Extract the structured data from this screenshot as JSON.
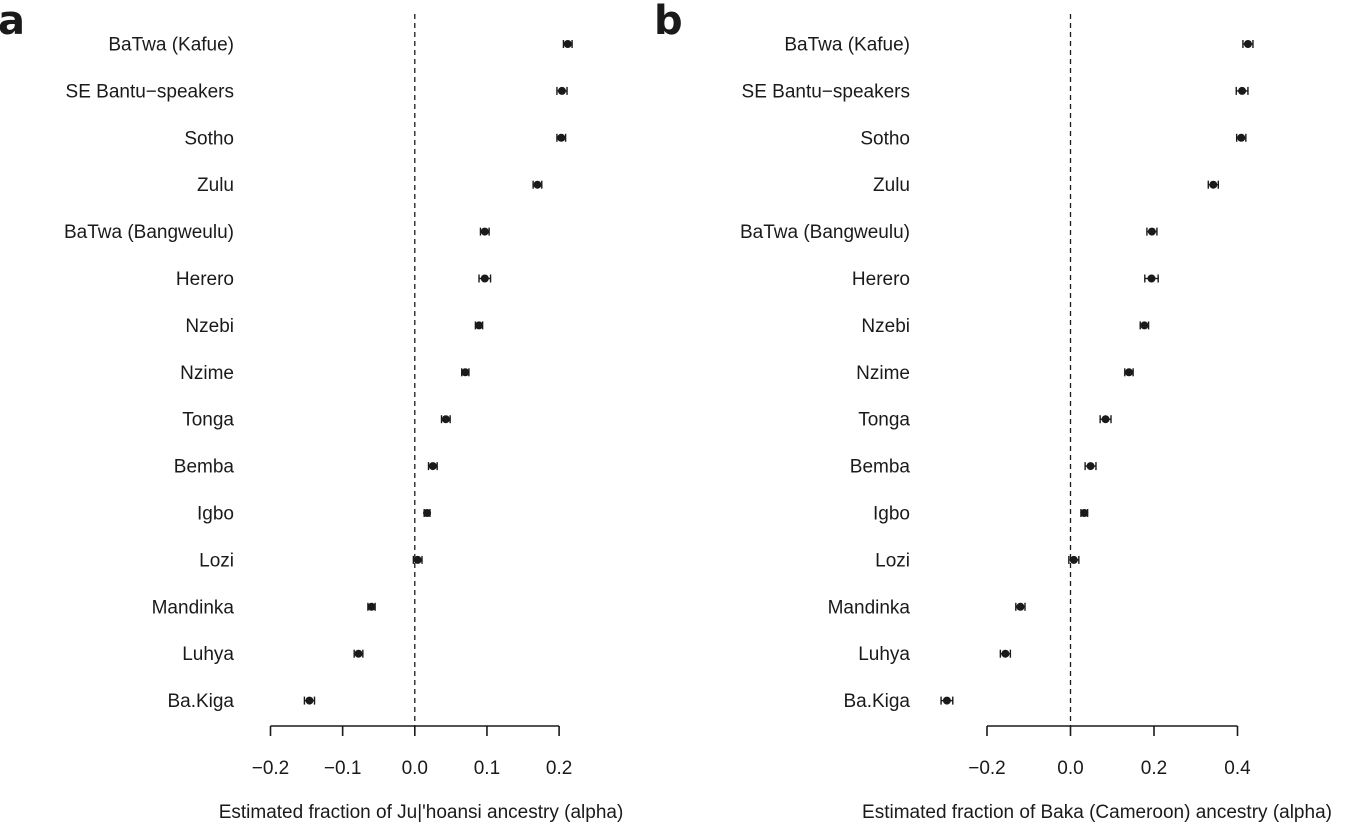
{
  "chart_data": [
    {
      "type": "scatter",
      "panel": "a",
      "xlabel": "Estimated fraction of Ju|'hoansi ancestry (alpha)",
      "xlim": [
        -0.2,
        0.2
      ],
      "xticks": [
        -0.2,
        -0.1,
        0.0,
        0.1,
        0.2
      ],
      "xtick_labels": [
        "−0.2",
        "−0.1",
        "0.0",
        "0.1",
        "0.2"
      ],
      "reference_line": 0.0,
      "points": [
        {
          "label": "BaTwa (Kafue)",
          "value": 0.212,
          "err": 0.006
        },
        {
          "label": "SE Bantu−speakers",
          "value": 0.204,
          "err": 0.007
        },
        {
          "label": "Sotho",
          "value": 0.203,
          "err": 0.006
        },
        {
          "label": "Zulu",
          "value": 0.17,
          "err": 0.006
        },
        {
          "label": "BaTwa (Bangweulu)",
          "value": 0.097,
          "err": 0.006
        },
        {
          "label": "Herero",
          "value": 0.097,
          "err": 0.008
        },
        {
          "label": "Nzebi",
          "value": 0.089,
          "err": 0.005
        },
        {
          "label": "Nzime",
          "value": 0.07,
          "err": 0.005
        },
        {
          "label": "Tonga",
          "value": 0.043,
          "err": 0.006
        },
        {
          "label": "Bemba",
          "value": 0.025,
          "err": 0.006
        },
        {
          "label": "Igbo",
          "value": 0.017,
          "err": 0.004
        },
        {
          "label": "Lozi",
          "value": 0.004,
          "err": 0.006
        },
        {
          "label": "Mandinka",
          "value": -0.06,
          "err": 0.005
        },
        {
          "label": "Luhya",
          "value": -0.078,
          "err": 0.006
        },
        {
          "label": "Ba.Kiga",
          "value": -0.146,
          "err": 0.007
        }
      ]
    },
    {
      "type": "scatter",
      "panel": "b",
      "xlabel": "Estimated fraction of Baka (Cameroon) ancestry (alpha)",
      "xlim": [
        -0.2,
        0.4
      ],
      "xticks": [
        -0.2,
        0.0,
        0.2,
        0.4
      ],
      "xtick_labels": [
        "−0.2",
        "0.0",
        "0.2",
        "0.4"
      ],
      "reference_line": 0.0,
      "points": [
        {
          "label": "BaTwa (Kafue)",
          "value": 0.425,
          "err": 0.012
        },
        {
          "label": "SE Bantu−speakers",
          "value": 0.411,
          "err": 0.014
        },
        {
          "label": "Sotho",
          "value": 0.409,
          "err": 0.011
        },
        {
          "label": "Zulu",
          "value": 0.342,
          "err": 0.012
        },
        {
          "label": "BaTwa (Bangweulu)",
          "value": 0.195,
          "err": 0.012
        },
        {
          "label": "Herero",
          "value": 0.194,
          "err": 0.016
        },
        {
          "label": "Nzebi",
          "value": 0.177,
          "err": 0.01
        },
        {
          "label": "Nzime",
          "value": 0.14,
          "err": 0.01
        },
        {
          "label": "Tonga",
          "value": 0.084,
          "err": 0.013
        },
        {
          "label": "Bemba",
          "value": 0.048,
          "err": 0.013
        },
        {
          "label": "Igbo",
          "value": 0.033,
          "err": 0.008
        },
        {
          "label": "Lozi",
          "value": 0.008,
          "err": 0.012
        },
        {
          "label": "Mandinka",
          "value": -0.12,
          "err": 0.011
        },
        {
          "label": "Luhya",
          "value": -0.156,
          "err": 0.012
        },
        {
          "label": "Ba.Kiga",
          "value": -0.296,
          "err": 0.014
        }
      ]
    }
  ]
}
